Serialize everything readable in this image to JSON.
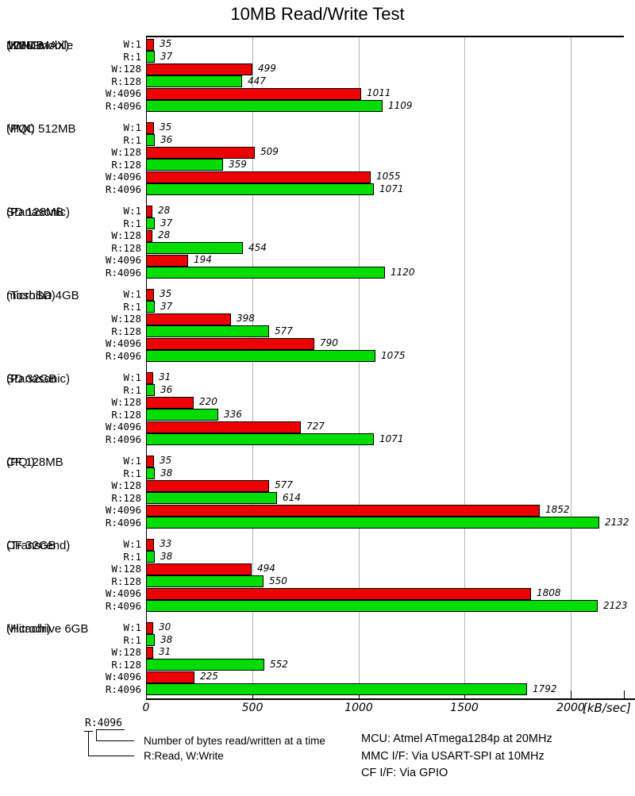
{
  "chart_data": {
    "type": "bar",
    "orientation": "horizontal",
    "title": "10MB Read/Write Test",
    "xlabel": "[kB/sec]",
    "xlim": [
      0,
      2250
    ],
    "xticks": [
      0,
      500,
      1000,
      1500,
      2000
    ],
    "grid": true,
    "row_labels": [
      "W:1",
      "R:1",
      "W:128",
      "R:128",
      "W:4096",
      "R:4096"
    ],
    "colors": {
      "write": "#ee0000",
      "read": "#00dd00",
      "gridline": "#b3b3b3"
    },
    "groups": [
      {
        "device": [
          "MMC mobile",
          "128MB",
          "(KINGMAX)"
        ],
        "values": [
          35,
          37,
          499,
          447,
          1011,
          1109
        ]
      },
      {
        "device": [
          "MMC 512MB",
          "(PQI)"
        ],
        "values": [
          35,
          36,
          509,
          359,
          1055,
          1071
        ]
      },
      {
        "device": [
          "SD 128MB",
          "(Panasonic)"
        ],
        "values": [
          28,
          37,
          28,
          454,
          194,
          1120
        ]
      },
      {
        "device": [
          "microSD 4GB",
          "(Toshiba)"
        ],
        "values": [
          35,
          37,
          398,
          577,
          790,
          1075
        ]
      },
      {
        "device": [
          "SD 32GB",
          "(Panasonic)"
        ],
        "values": [
          31,
          36,
          220,
          336,
          727,
          1071
        ]
      },
      {
        "device": [
          "CF 128MB",
          "(PQI)"
        ],
        "values": [
          35,
          38,
          577,
          614,
          1852,
          2132
        ]
      },
      {
        "device": [
          "CF 32GB",
          "(Transcend)"
        ],
        "values": [
          33,
          38,
          494,
          550,
          1808,
          2123
        ]
      },
      {
        "device": [
          "Microdrive 6GB",
          "(Hitachi)"
        ],
        "values": [
          30,
          38,
          31,
          552,
          225,
          1792
        ]
      }
    ]
  },
  "legend": {
    "sample": "R:4096",
    "line1": "Number of bytes read/written at a time",
    "line2": "R:Read, W:Write"
  },
  "footer": {
    "lines": [
      "MCU: Atmel ATmega1284p at 20MHz",
      "MMC I/F: Via USART-SPI at 10MHz",
      "CF I/F: Via GPIO"
    ]
  }
}
